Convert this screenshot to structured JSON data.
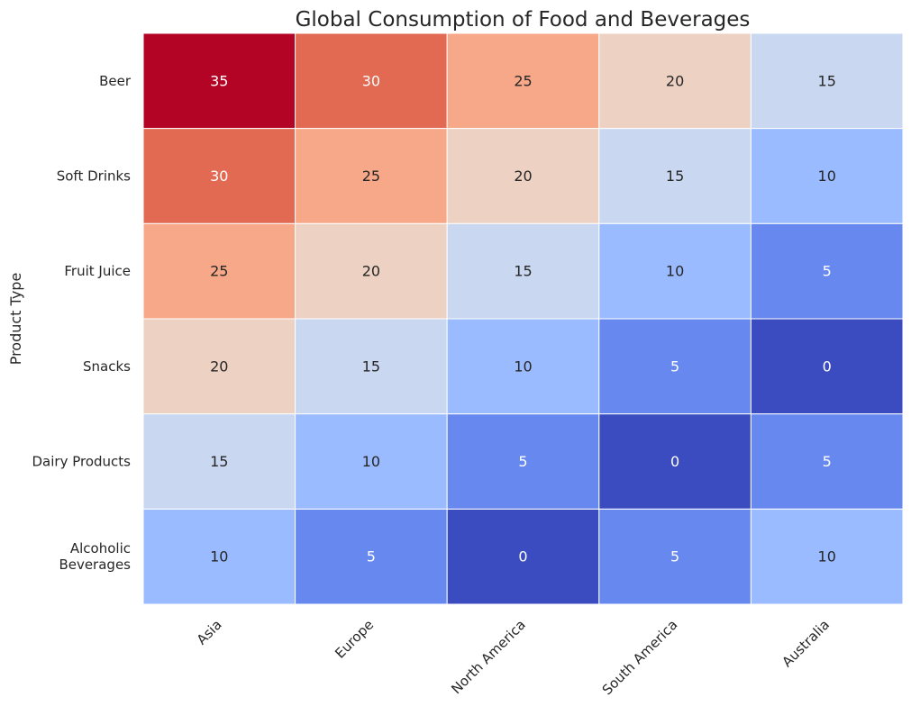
{
  "chart_data": {
    "type": "heatmap",
    "title": "Global Consumption of Food and Beverages",
    "xlabel": "",
    "ylabel": "Product Type",
    "x_categories": [
      "Asia",
      "Europe",
      "North America",
      "South America",
      "Australia"
    ],
    "y_categories": [
      "Beer",
      "Soft Drinks",
      "Fruit Juice",
      "Snacks",
      "Dairy Products",
      "Alcoholic Beverages"
    ],
    "values": [
      [
        35,
        30,
        25,
        20,
        15
      ],
      [
        30,
        25,
        20,
        15,
        10
      ],
      [
        25,
        20,
        15,
        10,
        5
      ],
      [
        20,
        15,
        10,
        5,
        0
      ],
      [
        15,
        10,
        5,
        0,
        5
      ],
      [
        10,
        5,
        0,
        5,
        10
      ]
    ],
    "colormap": "coolwarm",
    "value_range": [
      0,
      35
    ],
    "colorbar": false,
    "annotations": true,
    "cell_border_color": "#ffffff",
    "color_stops": [
      "#3b4cc0",
      "#6788ee",
      "#9abbff",
      "#c9d7f0",
      "#edd1c2",
      "#f7a889",
      "#e26952",
      "#b40426"
    ]
  }
}
